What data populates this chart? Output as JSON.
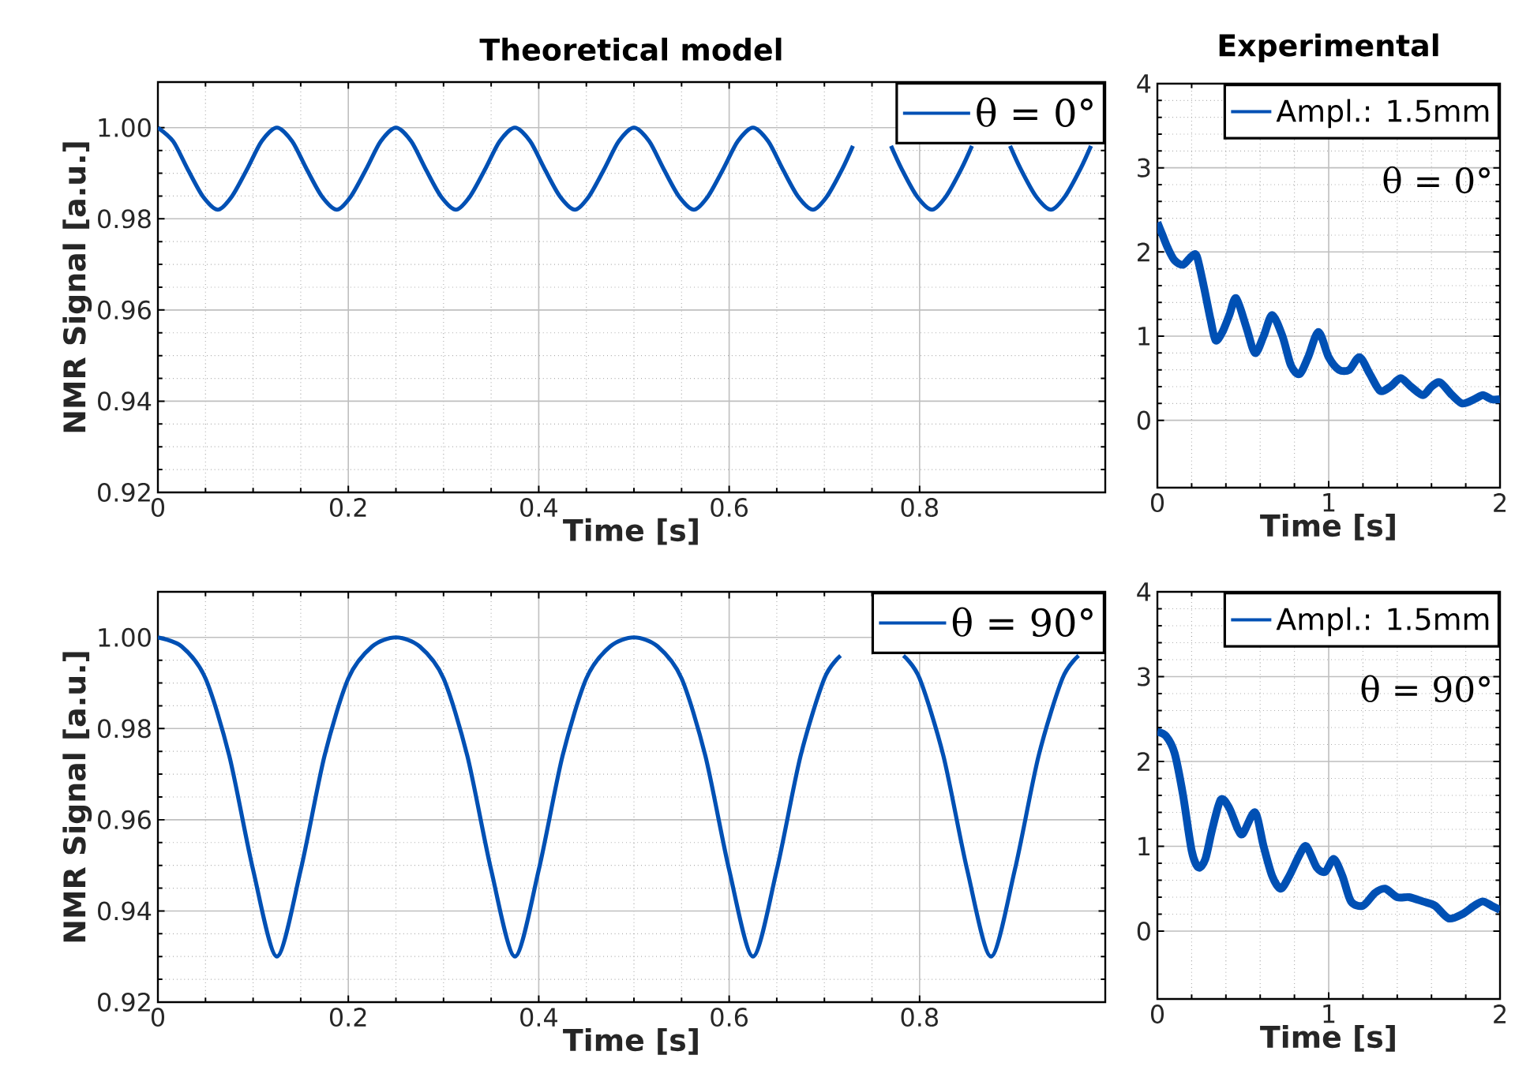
{
  "chart_data": [
    {
      "type": "line",
      "title": "Theoretical model",
      "xlabel": "Time [s]",
      "ylabel": "NMR Signal [a.u.]",
      "xlim": [
        0,
        0.995
      ],
      "ylim": [
        0.92,
        1.01
      ],
      "xticks": [
        0,
        0.2,
        0.4,
        0.6,
        0.8
      ],
      "yticks": [
        {
          "value": 0.92,
          "label": "0.92"
        },
        {
          "value": 0.94,
          "label": "0.94"
        },
        {
          "value": 0.96,
          "label": "0.96"
        },
        {
          "value": 0.98,
          "label": "0.98"
        },
        {
          "value": 1.0,
          "label": "1.00"
        }
      ],
      "grid": true,
      "legend": "top right",
      "x": [
        0,
        0.016,
        0.031,
        0.047,
        0.063,
        0.078,
        0.094,
        0.109,
        0.125,
        0.141,
        0.156,
        0.172,
        0.188,
        0.203,
        0.219,
        0.234,
        0.25,
        0.266,
        0.281,
        0.297,
        0.313,
        0.328,
        0.344,
        0.359,
        0.375,
        0.391,
        0.406,
        0.422,
        0.438,
        0.453,
        0.469,
        0.484,
        0.5,
        0.516,
        0.531,
        0.547,
        0.563,
        0.578,
        0.594,
        0.609,
        0.625,
        0.641,
        0.656,
        0.672,
        0.688,
        0.703,
        0.719,
        0.73,
        0.75,
        0.77,
        0.781,
        0.797,
        0.813,
        0.828,
        0.844,
        0.855,
        0.875,
        0.895,
        0.906,
        0.922,
        0.938,
        0.953,
        0.969,
        0.98
      ],
      "series": [
        {
          "name": "θ = 0°",
          "color": "#0050b4",
          "values": [
            1.0,
            0.997,
            0.991,
            0.985,
            0.982,
            0.985,
            0.991,
            0.997,
            1.0,
            0.997,
            0.991,
            0.985,
            0.982,
            0.985,
            0.991,
            0.997,
            1.0,
            0.997,
            0.991,
            0.985,
            0.982,
            0.985,
            0.991,
            0.997,
            1.0,
            0.997,
            0.991,
            0.985,
            0.982,
            0.985,
            0.991,
            0.997,
            1.0,
            0.997,
            0.991,
            0.985,
            0.982,
            0.985,
            0.991,
            0.997,
            1.0,
            0.997,
            0.991,
            0.985,
            0.982,
            0.985,
            0.991,
            0.996,
            null,
            0.996,
            0.991,
            0.985,
            0.982,
            0.985,
            0.991,
            0.996,
            null,
            0.996,
            0.991,
            0.985,
            0.982,
            0.985,
            0.991,
            0.996
          ]
        }
      ]
    },
    {
      "type": "line",
      "title": "Experimental",
      "xlabel": "Time [s]",
      "xlim": [
        0,
        2
      ],
      "ylim": [
        -0.8,
        4
      ],
      "xticks": [
        0,
        1,
        2
      ],
      "yticks": [
        0,
        1,
        2,
        3,
        4
      ],
      "grid": true,
      "legend": "top right",
      "annotations": [
        "θ = 0°"
      ],
      "x": [
        0,
        0.03,
        0.06,
        0.1,
        0.15,
        0.2,
        0.23,
        0.27,
        0.31,
        0.34,
        0.38,
        0.42,
        0.46,
        0.52,
        0.57,
        0.62,
        0.67,
        0.73,
        0.78,
        0.83,
        0.88,
        0.94,
        1.0,
        1.06,
        1.12,
        1.18,
        1.24,
        1.3,
        1.36,
        1.42,
        1.48,
        1.55,
        1.6,
        1.65,
        1.72,
        1.78,
        1.85,
        1.9,
        1.95,
        2.0
      ],
      "series": [
        {
          "name": "Ampl.: 1.5mm",
          "color": "#0050b4",
          "values": [
            2.35,
            2.2,
            2.05,
            1.9,
            1.85,
            1.95,
            1.95,
            1.6,
            1.2,
            0.95,
            1.05,
            1.25,
            1.45,
            1.1,
            0.8,
            1.0,
            1.25,
            1.0,
            0.65,
            0.55,
            0.75,
            1.05,
            0.75,
            0.6,
            0.6,
            0.75,
            0.55,
            0.35,
            0.4,
            0.5,
            0.4,
            0.3,
            0.4,
            0.45,
            0.3,
            0.2,
            0.25,
            0.3,
            0.25,
            0.25
          ]
        }
      ]
    },
    {
      "type": "line",
      "xlabel": "Time [s]",
      "ylabel": "NMR Signal [a.u.]",
      "xlim": [
        0,
        0.995
      ],
      "ylim": [
        0.92,
        1.01
      ],
      "xticks": [
        0,
        0.2,
        0.4,
        0.6,
        0.8
      ],
      "yticks": [
        {
          "value": 0.92,
          "label": "0.92"
        },
        {
          "value": 0.94,
          "label": "0.94"
        },
        {
          "value": 0.96,
          "label": "0.96"
        },
        {
          "value": 0.98,
          "label": "0.98"
        },
        {
          "value": 1.0,
          "label": "1.00"
        }
      ],
      "grid": true,
      "legend": "top right",
      "x": [
        0,
        0.025,
        0.05,
        0.075,
        0.1,
        0.125,
        0.15,
        0.175,
        0.2,
        0.225,
        0.25,
        0.275,
        0.3,
        0.325,
        0.35,
        0.375,
        0.4,
        0.425,
        0.45,
        0.475,
        0.5,
        0.525,
        0.55,
        0.575,
        0.6,
        0.625,
        0.65,
        0.675,
        0.7,
        0.717,
        0.75,
        0.783,
        0.8,
        0.825,
        0.85,
        0.875,
        0.9,
        0.925,
        0.95,
        0.967
      ],
      "series": [
        {
          "name": "θ = 90°",
          "color": "#0050b4",
          "values": [
            1.0,
            0.998,
            0.991,
            0.974,
            0.949,
            0.93,
            0.949,
            0.974,
            0.991,
            0.998,
            1.0,
            0.998,
            0.991,
            0.974,
            0.949,
            0.93,
            0.949,
            0.974,
            0.991,
            0.998,
            1.0,
            0.998,
            0.991,
            0.974,
            0.949,
            0.93,
            0.949,
            0.974,
            0.991,
            0.996,
            null,
            0.996,
            0.991,
            0.974,
            0.949,
            0.93,
            0.949,
            0.974,
            0.991,
            0.996
          ]
        }
      ]
    },
    {
      "type": "line",
      "xlabel": "Time [s]",
      "xlim": [
        0,
        2
      ],
      "ylim": [
        -0.8,
        4
      ],
      "xticks": [
        0,
        1,
        2
      ],
      "yticks": [
        0,
        1,
        2,
        3,
        4
      ],
      "grid": true,
      "legend": "top right",
      "annotations": [
        "θ = 90°"
      ],
      "x": [
        0,
        0.05,
        0.1,
        0.15,
        0.2,
        0.24,
        0.28,
        0.32,
        0.37,
        0.42,
        0.47,
        0.5,
        0.57,
        0.62,
        0.67,
        0.72,
        0.77,
        0.83,
        0.87,
        0.93,
        0.98,
        1.03,
        1.08,
        1.13,
        1.2,
        1.27,
        1.33,
        1.4,
        1.47,
        1.55,
        1.62,
        1.7,
        1.78,
        1.85,
        1.9,
        1.95,
        2.0
      ],
      "series": [
        {
          "name": "Ampl.: 1.5mm",
          "color": "#0050b4",
          "values": [
            2.35,
            2.3,
            2.1,
            1.6,
            0.95,
            0.75,
            0.85,
            1.2,
            1.55,
            1.45,
            1.2,
            1.15,
            1.4,
            1.0,
            0.65,
            0.5,
            0.65,
            0.9,
            1.0,
            0.75,
            0.7,
            0.85,
            0.65,
            0.35,
            0.3,
            0.45,
            0.5,
            0.4,
            0.4,
            0.35,
            0.3,
            0.15,
            0.2,
            0.3,
            0.35,
            0.3,
            0.25
          ]
        }
      ]
    }
  ]
}
